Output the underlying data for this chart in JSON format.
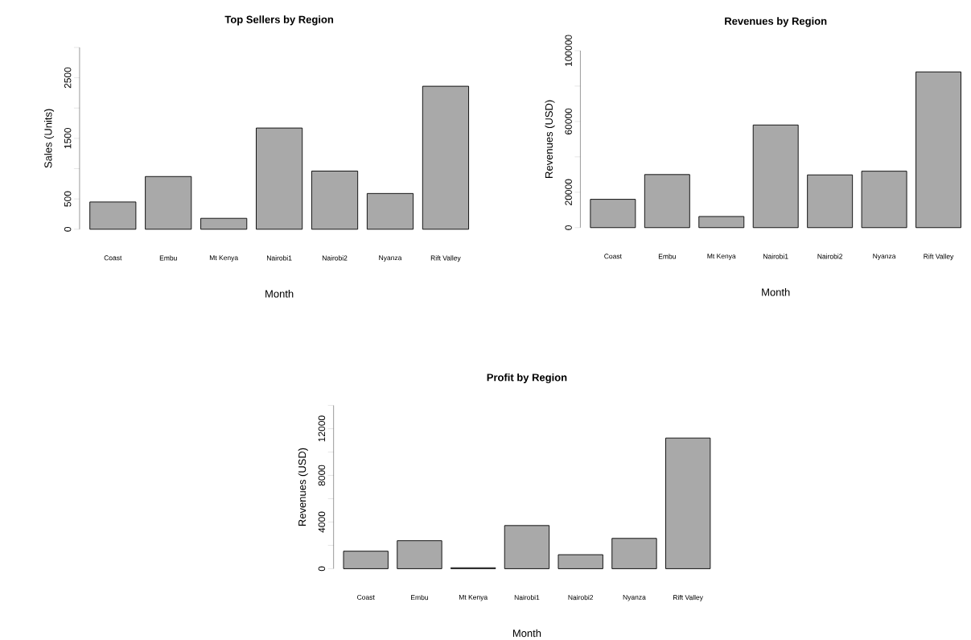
{
  "chart_data": [
    {
      "type": "bar",
      "title": "Top Sellers by Region",
      "xlabel": "Month",
      "ylabel": "Sales (Units)",
      "categories": [
        "Coast",
        "Embu",
        "Mt Kenya",
        "Nairobi1",
        "Nairobi2",
        "Nyanza",
        "Rift Valley"
      ],
      "values": [
        450,
        870,
        180,
        1670,
        960,
        590,
        2360
      ],
      "color": "#a9a9a9",
      "ylim": [
        0,
        3000
      ],
      "yticks": [
        0,
        500,
        {
          "value": 1000,
          "label": null
        },
        1500,
        {
          "value": 2000,
          "label": null
        },
        2500,
        {
          "value": 3000,
          "label": null
        }
      ]
    },
    {
      "type": "bar",
      "title": "Revenues by Region",
      "xlabel": "Month",
      "ylabel": "Revenues (USD)",
      "categories": [
        "Coast",
        "Embu",
        "Mt Kenya",
        "Nairobi1",
        "Nairobi2",
        "Nyanza",
        "Rift Valley"
      ],
      "values": [
        16000,
        30000,
        6300,
        58000,
        29800,
        31900,
        88000
      ],
      "color": "#a9a9a9",
      "ylim": [
        0,
        100000
      ],
      "yticks": [
        0,
        20000,
        {
          "value": 40000,
          "label": null
        },
        60000,
        {
          "value": 80000,
          "label": null
        },
        100000
      ]
    },
    {
      "type": "bar",
      "title": "Profit by Region",
      "xlabel": "Month",
      "ylabel": "Revenues (USD)",
      "categories": [
        "Coast",
        "Embu",
        "Mt Kenya",
        "Nairobi1",
        "Nairobi2",
        "Nyanza",
        "Rift Valley"
      ],
      "values": [
        1500,
        2400,
        80,
        3700,
        1200,
        2600,
        11200
      ],
      "color": "#a9a9a9",
      "ylim": [
        0,
        14000
      ],
      "yticks": [
        0,
        {
          "value": 2000,
          "label": null
        },
        4000,
        {
          "value": 6000,
          "label": null
        },
        8000,
        {
          "value": 10000,
          "label": null
        },
        12000,
        {
          "value": 14000,
          "label": null
        }
      ]
    }
  ]
}
